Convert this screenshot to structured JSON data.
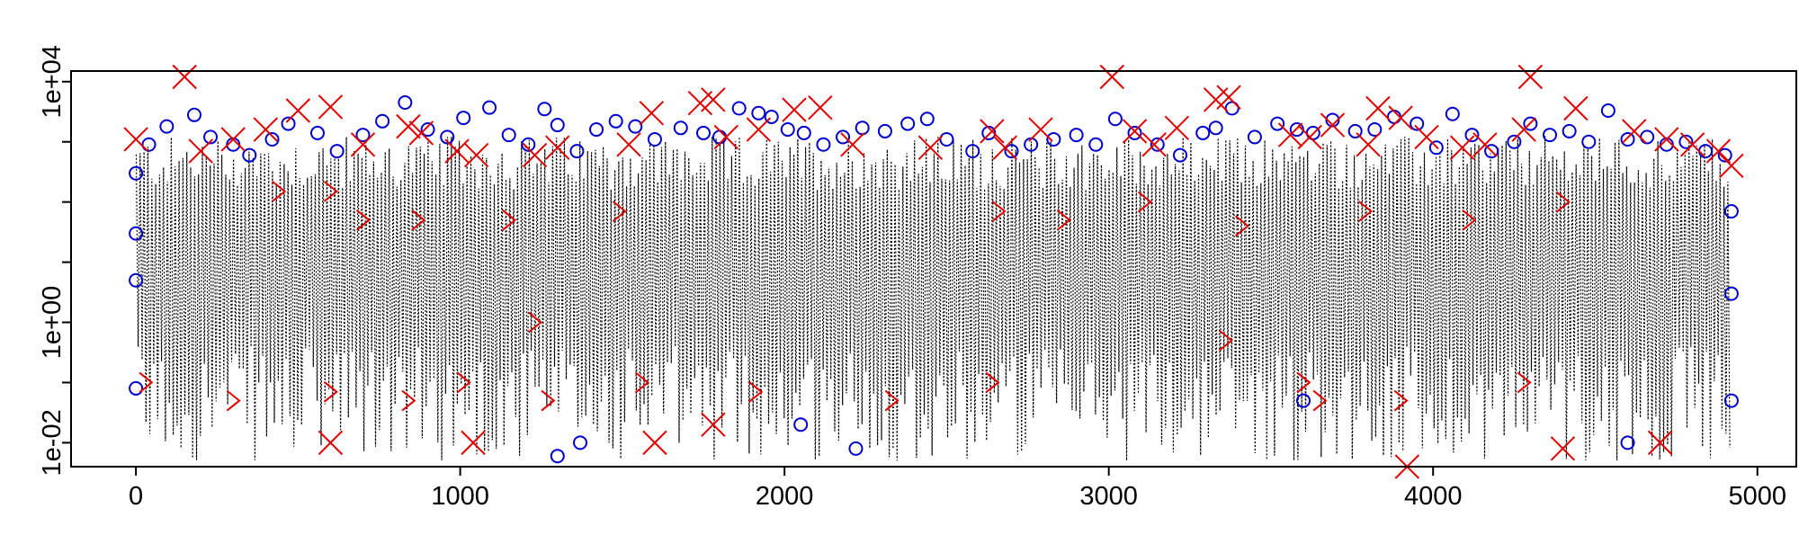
{
  "chart_data": {
    "type": "line",
    "title": "",
    "xlabel": "",
    "ylabel": "",
    "x_range": [
      1,
      4920
    ],
    "xlim": [
      -200,
      5120
    ],
    "ylim": [
      0.004,
      15000
    ],
    "y_scale": "log",
    "grid": false,
    "legend": "none",
    "x_ticks": [
      {
        "value": 0,
        "label": "0"
      },
      {
        "value": 1000,
        "label": "1000"
      },
      {
        "value": 2000,
        "label": "2000"
      },
      {
        "value": 3000,
        "label": "3000"
      },
      {
        "value": 4000,
        "label": "4000"
      },
      {
        "value": 5000,
        "label": "5000"
      }
    ],
    "y_ticks": [
      {
        "value": 0.01,
        "label": "1e-02"
      },
      {
        "value": 1,
        "label": "1e+00"
      },
      {
        "value": 10000,
        "label": "1e+04"
      }
    ],
    "y_minor_ticks": [
      0.1,
      10,
      100,
      1000
    ],
    "series": [
      {
        "style": "dotted line",
        "color": "#000000",
        "description_values": "dense oscillating series, typical range 0.01 to 2000"
      },
      {
        "style": "circle markers",
        "color": "#0000cc"
      },
      {
        "style": "cross markers",
        "color": "#e00000"
      }
    ],
    "circle_markers": [
      [
        0,
        300
      ],
      [
        0,
        30
      ],
      [
        0,
        5
      ],
      [
        0,
        0.08
      ],
      [
        40,
        900
      ],
      [
        95,
        1800
      ],
      [
        180,
        2800
      ],
      [
        230,
        1200
      ],
      [
        300,
        900
      ],
      [
        350,
        600
      ],
      [
        420,
        1100
      ],
      [
        470,
        2000
      ],
      [
        560,
        1400
      ],
      [
        620,
        700
      ],
      [
        700,
        1300
      ],
      [
        760,
        2200
      ],
      [
        830,
        4500
      ],
      [
        900,
        1600
      ],
      [
        960,
        1200
      ],
      [
        1010,
        2500
      ],
      [
        1090,
        3700
      ],
      [
        1150,
        1300
      ],
      [
        1210,
        900
      ],
      [
        1260,
        3500
      ],
      [
        1300,
        1900
      ],
      [
        1360,
        700
      ],
      [
        1420,
        1600
      ],
      [
        1480,
        2200
      ],
      [
        1540,
        1800
      ],
      [
        1600,
        1100
      ],
      [
        1680,
        1700
      ],
      [
        1750,
        1400
      ],
      [
        1800,
        1200
      ],
      [
        1860,
        3600
      ],
      [
        1920,
        3000
      ],
      [
        1960,
        2600
      ],
      [
        2010,
        1600
      ],
      [
        2060,
        1400
      ],
      [
        2120,
        900
      ],
      [
        2180,
        1200
      ],
      [
        2240,
        1700
      ],
      [
        2310,
        1500
      ],
      [
        2380,
        2000
      ],
      [
        2440,
        2400
      ],
      [
        2500,
        1100
      ],
      [
        2580,
        700
      ],
      [
        2630,
        1400
      ],
      [
        2700,
        700
      ],
      [
        2760,
        900
      ],
      [
        2830,
        1100
      ],
      [
        2900,
        1300
      ],
      [
        2960,
        900
      ],
      [
        3020,
        2400
      ],
      [
        3080,
        1400
      ],
      [
        3150,
        900
      ],
      [
        3220,
        600
      ],
      [
        3290,
        1400
      ],
      [
        3330,
        1700
      ],
      [
        3380,
        3600
      ],
      [
        3450,
        1200
      ],
      [
        3520,
        2000
      ],
      [
        3580,
        1600
      ],
      [
        3630,
        1400
      ],
      [
        3690,
        2300
      ],
      [
        3760,
        1500
      ],
      [
        3820,
        1600
      ],
      [
        3880,
        2600
      ],
      [
        3950,
        2000
      ],
      [
        4010,
        800
      ],
      [
        4060,
        2900
      ],
      [
        4120,
        1300
      ],
      [
        4180,
        700
      ],
      [
        4250,
        1000
      ],
      [
        4300,
        2000
      ],
      [
        4360,
        1300
      ],
      [
        4420,
        1500
      ],
      [
        4480,
        1000
      ],
      [
        4540,
        3300
      ],
      [
        4600,
        1100
      ],
      [
        4660,
        1200
      ],
      [
        4720,
        900
      ],
      [
        4780,
        1000
      ],
      [
        4840,
        700
      ],
      [
        4900,
        600
      ],
      [
        4920,
        70
      ],
      [
        4920,
        3
      ],
      [
        4920,
        0.05
      ],
      [
        1300,
        0.006
      ],
      [
        1370,
        0.01
      ],
      [
        2050,
        0.02
      ],
      [
        2220,
        0.008
      ],
      [
        3600,
        0.05
      ],
      [
        4600,
        0.01
      ]
    ],
    "cross_markers": [
      [
        0,
        1100
      ],
      [
        150,
        12000
      ],
      [
        200,
        700
      ],
      [
        300,
        1100
      ],
      [
        400,
        1600
      ],
      [
        500,
        3300
      ],
      [
        600,
        3800
      ],
      [
        700,
        900
      ],
      [
        840,
        1800
      ],
      [
        880,
        1400
      ],
      [
        990,
        700
      ],
      [
        1050,
        600
      ],
      [
        1230,
        600
      ],
      [
        1300,
        800
      ],
      [
        1520,
        900
      ],
      [
        1590,
        3000
      ],
      [
        1740,
        4400
      ],
      [
        1780,
        5000
      ],
      [
        1820,
        1200
      ],
      [
        1920,
        1600
      ],
      [
        2030,
        3400
      ],
      [
        2110,
        3700
      ],
      [
        2210,
        900
      ],
      [
        2450,
        800
      ],
      [
        2640,
        1500
      ],
      [
        2680,
        800
      ],
      [
        2790,
        1600
      ],
      [
        3010,
        12000
      ],
      [
        3080,
        1500
      ],
      [
        3140,
        900
      ],
      [
        3210,
        1700
      ],
      [
        3330,
        5000
      ],
      [
        3370,
        5500
      ],
      [
        3560,
        1300
      ],
      [
        3620,
        1200
      ],
      [
        3690,
        1900
      ],
      [
        3800,
        900
      ],
      [
        3830,
        3600
      ],
      [
        3900,
        2500
      ],
      [
        3980,
        1200
      ],
      [
        4090,
        800
      ],
      [
        4160,
        900
      ],
      [
        4280,
        1600
      ],
      [
        4300,
        12000
      ],
      [
        4440,
        3600
      ],
      [
        4620,
        1500
      ],
      [
        4720,
        1100
      ],
      [
        4800,
        900
      ],
      [
        4880,
        700
      ],
      [
        4920,
        400
      ],
      [
        3920,
        0.002
      ],
      [
        4400,
        0.008
      ],
      [
        4700,
        0.01
      ],
      [
        1600,
        0.01
      ],
      [
        1780,
        0.02
      ],
      [
        600,
        0.01
      ],
      [
        1040,
        0.01
      ]
    ],
    "chevron_markers": [
      [
        440,
        150
      ],
      [
        600,
        150
      ],
      [
        700,
        50
      ],
      [
        870,
        50
      ],
      [
        1150,
        50
      ],
      [
        1490,
        70
      ],
      [
        2660,
        70
      ],
      [
        2860,
        50
      ],
      [
        3110,
        100
      ],
      [
        3410,
        40
      ],
      [
        3790,
        70
      ],
      [
        4110,
        50
      ],
      [
        4400,
        100
      ],
      [
        1230,
        1
      ],
      [
        3360,
        0.5
      ],
      [
        30,
        0.1
      ],
      [
        300,
        0.05
      ],
      [
        600,
        0.07
      ],
      [
        840,
        0.05
      ],
      [
        1010,
        0.1
      ],
      [
        1270,
        0.05
      ],
      [
        1560,
        0.1
      ],
      [
        1910,
        0.07
      ],
      [
        2330,
        0.05
      ],
      [
        2640,
        0.1
      ],
      [
        3600,
        0.1
      ],
      [
        3900,
        0.05
      ],
      [
        4280,
        0.1
      ],
      [
        3650,
        0.05
      ]
    ]
  }
}
